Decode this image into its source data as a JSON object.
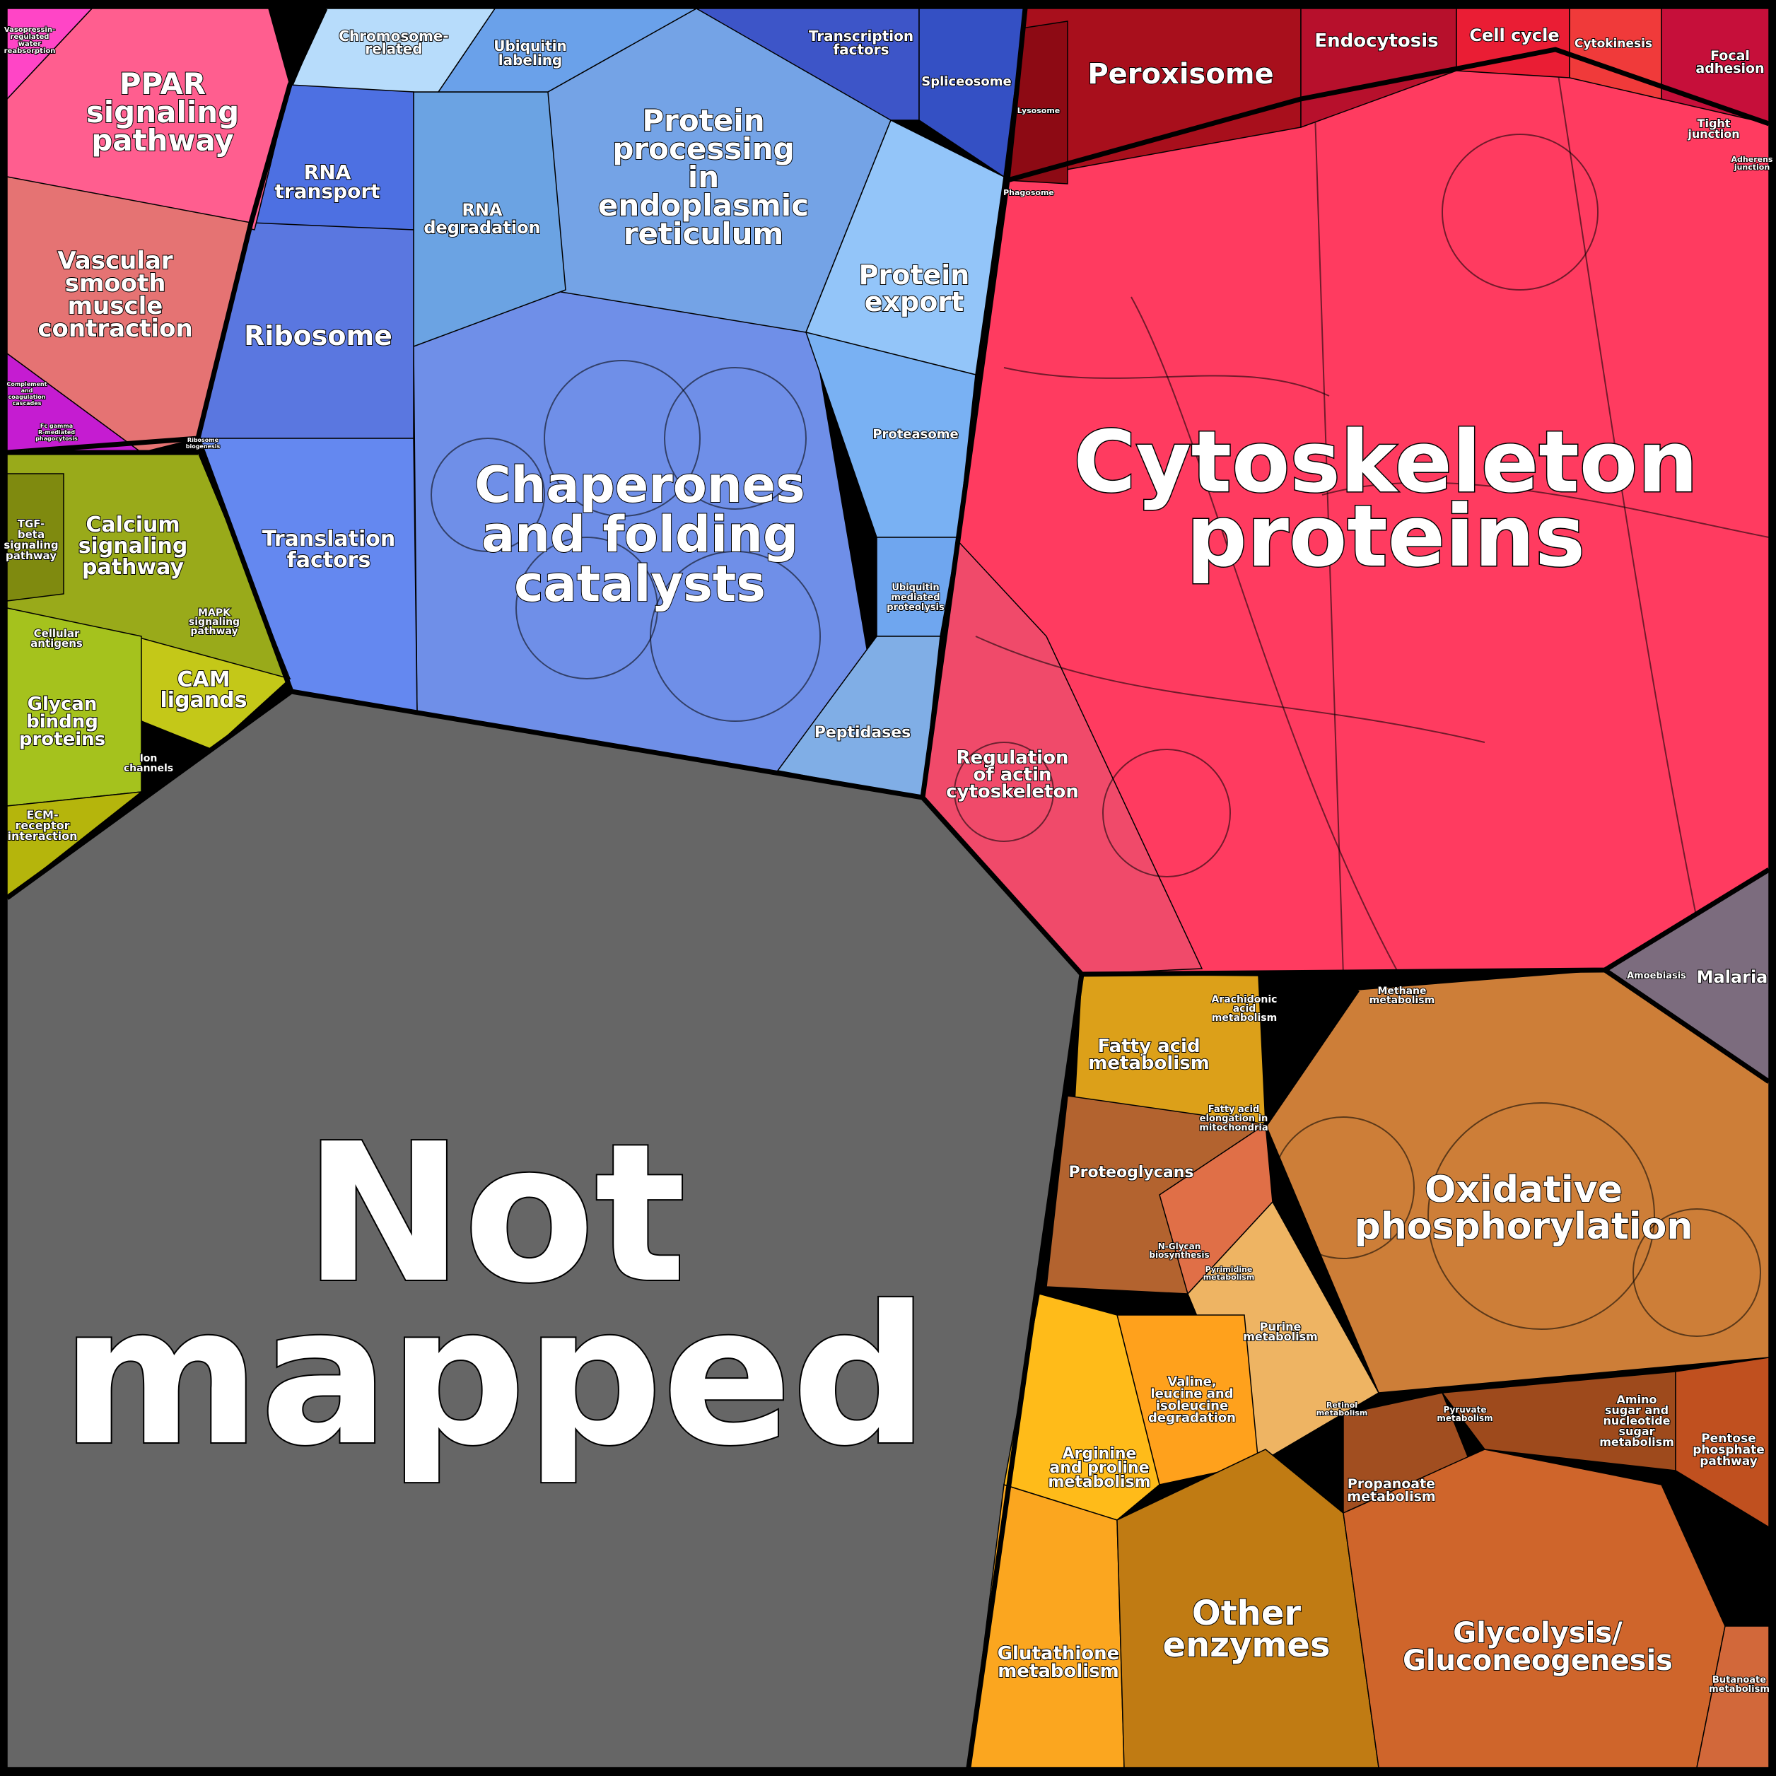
{
  "colors": {
    "not_mapped": "#666666",
    "cytoskeleton": "#ff3b60",
    "peroxisome": "#a80f1c",
    "chaperones": "#6f8fe8",
    "protein_processing": "#74a3e6",
    "protein_export": "#93c5f9",
    "ribosome": "#5a77e0",
    "ppar": "#ff5e8f",
    "vascular": "#e57373",
    "calcium": "#99aa1a",
    "glycan": "#a5c21d",
    "oxidative": "#cd7e38",
    "glycolysis": "#cf652b",
    "other_enzymes": "#c07b13",
    "glutathione": "#fba61f",
    "arginine": "#ffbb19",
    "fatty_acid": "#dca019",
    "proteoglycans": "#b3632f",
    "malaria": "#7c6c7e"
  },
  "labels": {
    "not_mapped_1": "Not",
    "not_mapped_2": "mapped",
    "cytoskeleton_1": "Cytoskeleton",
    "cytoskeleton_2": "proteins",
    "chaperones_1": "Chaperones",
    "chaperones_2": "and folding",
    "chaperones_3": "catalysts",
    "protein_processing_1": "Protein",
    "protein_processing_2": "processing",
    "protein_processing_3": "in",
    "protein_processing_4": "endoplasmic",
    "protein_processing_5": "reticulum",
    "protein_export_1": "Protein",
    "protein_export_2": "export",
    "rna_degradation_1": "RNA",
    "rna_degradation_2": "degradation",
    "rna_transport_1": "RNA",
    "rna_transport_2": "transport",
    "ribosome": "Ribosome",
    "translation_factors_1": "Translation",
    "translation_factors_2": "factors",
    "ubiquitin_labeling_1": "Ubiquitin",
    "ubiquitin_labeling_2": "labeling",
    "chromosome_1": "Chromosome-",
    "chromosome_2": "related",
    "transcription_factors_1": "Transcription",
    "transcription_factors_2": "factors",
    "spliceosome": "Spliceosome",
    "proteasome": "Proteasome",
    "ubiquitin_mediated_1": "Ubiquitin",
    "ubiquitin_mediated_2": "mediated",
    "ubiquitin_mediated_3": "proteolysis",
    "peptidases": "Peptidases",
    "peroxisome": "Peroxisome",
    "endocytosis": "Endocytosis",
    "cell_cycle": "Cell cycle",
    "cytokinesis": "Cytokinesis",
    "focal_adhesion_1": "Focal",
    "focal_adhesion_2": "adhesion",
    "tight_junction_1": "Tight",
    "tight_junction_2": "junction",
    "adherens_1": "Adherens",
    "adherens_2": "junction",
    "lysosome": "Lysosome",
    "phagosome": "Phagosome",
    "regulation_actin_1": "Regulation",
    "regulation_actin_2": "of actin",
    "regulation_actin_3": "cytoskeleton",
    "ppar_1": "PPAR",
    "ppar_2": "signaling",
    "ppar_3": "pathway",
    "vascular_1": "Vascular",
    "vascular_2": "smooth",
    "vascular_3": "muscle",
    "vascular_4": "contraction",
    "vasopressin_1": "Vasopressin-",
    "vasopressin_2": "regulated",
    "vasopressin_3": "water",
    "vasopressin_4": "reabsorption",
    "complement_1": "Complement",
    "complement_2": "and",
    "complement_3": "coagulation",
    "complement_4": "cascades",
    "fc_gamma_1": "Fc gamma",
    "fc_gamma_2": "R-mediated",
    "fc_gamma_3": "phagocytosis",
    "ribosome_biogenesis_1": "Ribosome",
    "ribosome_biogenesis_2": "biogenesis",
    "calcium_1": "Calcium",
    "calcium_2": "signaling",
    "calcium_3": "pathway",
    "tgf_1": "TGF-",
    "tgf_2": "beta",
    "tgf_3": "signaling",
    "tgf_4": "pathway",
    "mapk_1": "MAPK",
    "mapk_2": "signaling",
    "mapk_3": "pathway",
    "cellular_antigens_1": "Cellular",
    "cellular_antigens_2": "antigens",
    "cam_1": "CAM",
    "cam_2": "ligands",
    "glycan_1": "Glycan",
    "glycan_2": "bindng",
    "glycan_3": "proteins",
    "ion_channels_1": "Ion",
    "ion_channels_2": "channels",
    "ecm_1": "ECM-",
    "ecm_2": "receptor",
    "ecm_3": "interaction",
    "fatty_acid_1": "Fatty acid",
    "fatty_acid_2": "metabolism",
    "arachidonic_1": "Arachidonic",
    "arachidonic_2": "acid",
    "arachidonic_3": "metabolism",
    "methane_1": "Methane",
    "methane_2": "metabolism",
    "fatty_elong_1": "Fatty acid",
    "fatty_elong_2": "elongation in",
    "fatty_elong_3": "mitochondria",
    "proteoglycans": "Proteoglycans",
    "nglycan_1": "N-Glycan",
    "nglycan_2": "biosynthesis",
    "oxidative_1": "Oxidative",
    "oxidative_2": "phosphorylation",
    "pyrimidine_1": "Pyrimidine",
    "pyrimidine_2": "metabolism",
    "purine_1": "Purine",
    "purine_2": "metabolism",
    "valine_1": "Valine,",
    "valine_2": "leucine and",
    "valine_3": "isoleucine",
    "valine_4": "degradation",
    "arginine_1": "Arginine",
    "arginine_2": "and proline",
    "arginine_3": "metabolism",
    "other_enzymes_1": "Other",
    "other_enzymes_2": "enzymes",
    "glutathione_1": "Glutathione",
    "glutathione_2": "metabolism",
    "glycolysis_1": "Glycolysis/",
    "glycolysis_2": "Gluconeogenesis",
    "propanoate_1": "Propanoate",
    "propanoate_2": "metabolism",
    "pyruvate_1": "Pyruvate",
    "pyruvate_2": "metabolism",
    "amino_sugar_1": "Amino",
    "amino_sugar_2": "sugar and",
    "amino_sugar_3": "nucleotide",
    "amino_sugar_4": "sugar",
    "amino_sugar_5": "metabolism",
    "pentose_1": "Pentose",
    "pentose_2": "phosphate",
    "pentose_3": "pathway",
    "butanoate_1": "Butanoate",
    "butanoate_2": "metabolism",
    "retinol_1": "Retinol",
    "retinol_2": "metabolism",
    "malaria": "Malaria",
    "amoebiasis": "Amoebiasis"
  }
}
